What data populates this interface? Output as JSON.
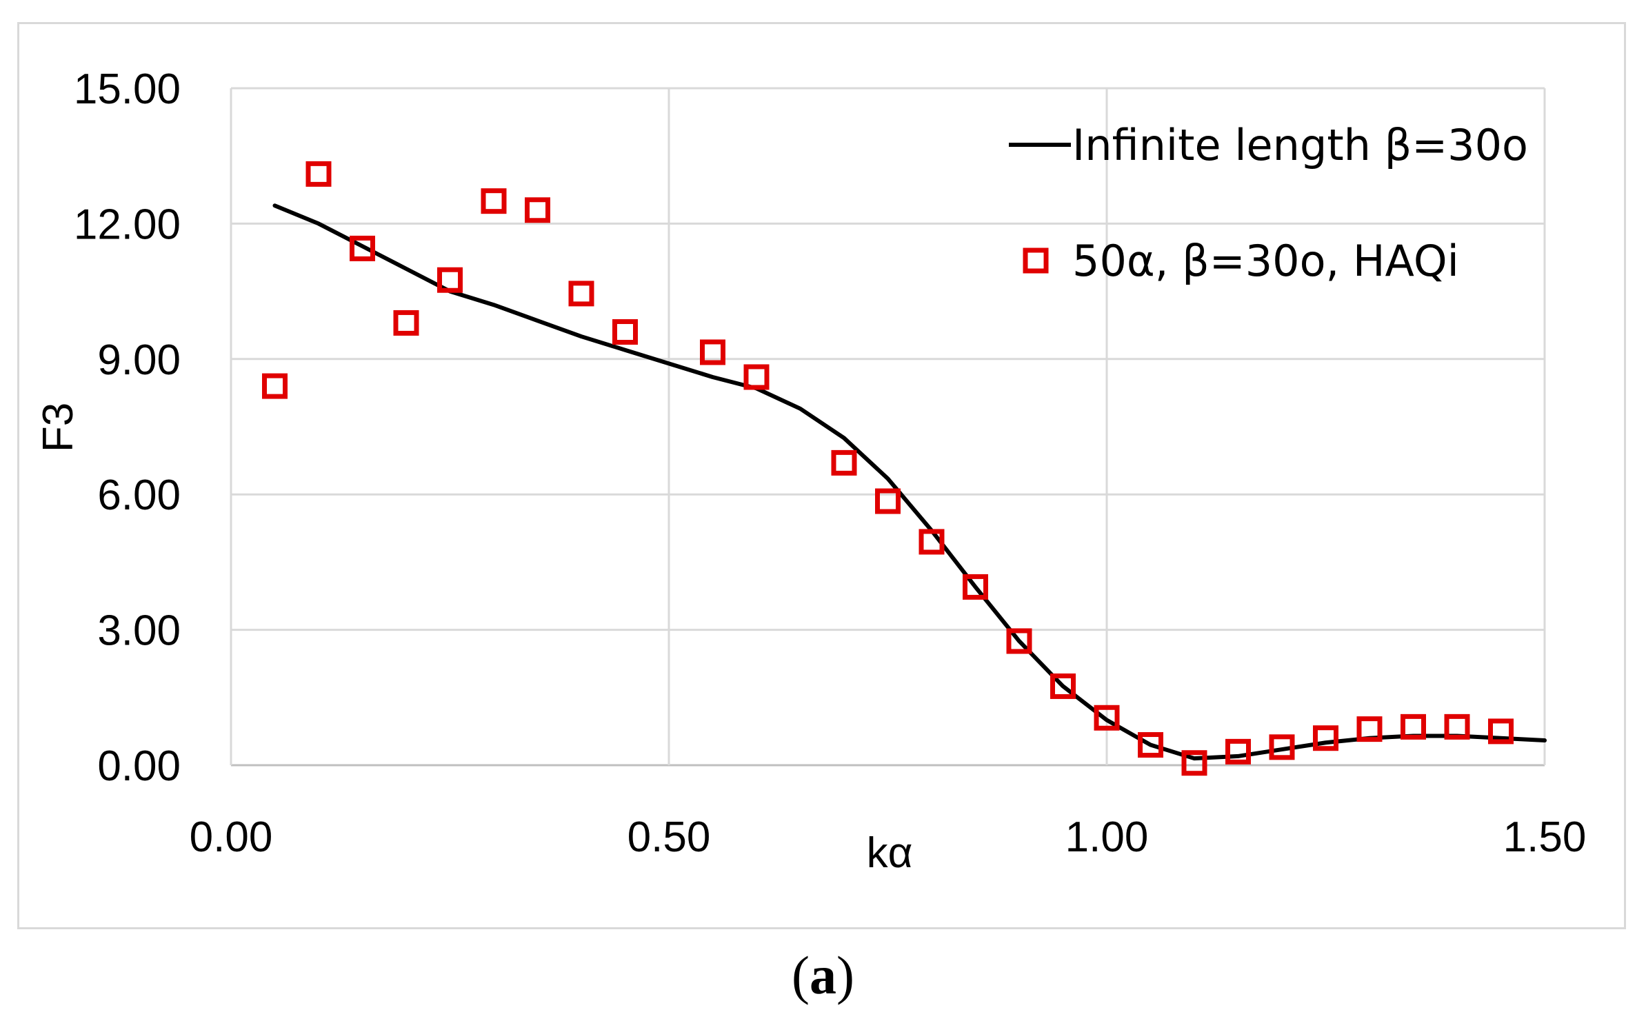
{
  "chart_data": {
    "type": "line",
    "title": "",
    "xlabel": "kα",
    "ylabel": "F3",
    "xlim": [
      0,
      1.5
    ],
    "ylim": [
      0,
      15
    ],
    "x_ticks": [
      0,
      0.5,
      1.0,
      1.5
    ],
    "x_tick_labels": [
      "0.00",
      "0.50",
      "1.00",
      "1.50"
    ],
    "y_ticks": [
      0,
      3,
      6,
      9,
      12,
      15
    ],
    "y_tick_labels": [
      "0.00",
      "3.00",
      "6.00",
      "9.00",
      "12.00",
      "15.00"
    ],
    "grid": true,
    "legend_position": "top-right",
    "series": [
      {
        "name": "Infinite length β=30o",
        "kind": "line",
        "color": "#000000",
        "x": [
          0.05,
          0.1,
          0.15,
          0.2,
          0.25,
          0.3,
          0.35,
          0.4,
          0.45,
          0.5,
          0.55,
          0.6,
          0.65,
          0.7,
          0.75,
          0.8,
          0.85,
          0.9,
          0.95,
          1.0,
          1.05,
          1.1,
          1.15,
          1.2,
          1.25,
          1.3,
          1.35,
          1.4,
          1.45,
          1.5
        ],
        "y": [
          12.4,
          12.0,
          11.5,
          11.0,
          10.5,
          10.2,
          9.85,
          9.5,
          9.2,
          8.9,
          8.6,
          8.35,
          7.9,
          7.25,
          6.35,
          5.2,
          3.95,
          2.75,
          1.75,
          1.0,
          0.45,
          0.15,
          0.2,
          0.35,
          0.5,
          0.6,
          0.65,
          0.65,
          0.6,
          0.55
        ]
      },
      {
        "name": "50α, β=30o, HAQi",
        "kind": "scatter",
        "marker": "square",
        "color": "#e00000",
        "x": [
          0.05,
          0.1,
          0.15,
          0.2,
          0.25,
          0.3,
          0.35,
          0.4,
          0.45,
          0.55,
          0.6,
          0.7,
          0.75,
          0.8,
          0.85,
          0.9,
          0.95,
          1.0,
          1.05,
          1.1,
          1.15,
          1.2,
          1.25,
          1.3,
          1.35,
          1.4,
          1.45
        ],
        "y": [
          8.4,
          13.1,
          11.45,
          9.8,
          10.75,
          12.5,
          12.3,
          10.45,
          9.6,
          9.15,
          8.6,
          6.7,
          5.85,
          4.95,
          3.95,
          2.75,
          1.75,
          1.05,
          0.45,
          0.05,
          0.3,
          0.4,
          0.6,
          0.8,
          0.85,
          0.85,
          0.75
        ]
      }
    ]
  },
  "caption": {
    "open": "(",
    "letter": "a",
    "close": ")"
  }
}
